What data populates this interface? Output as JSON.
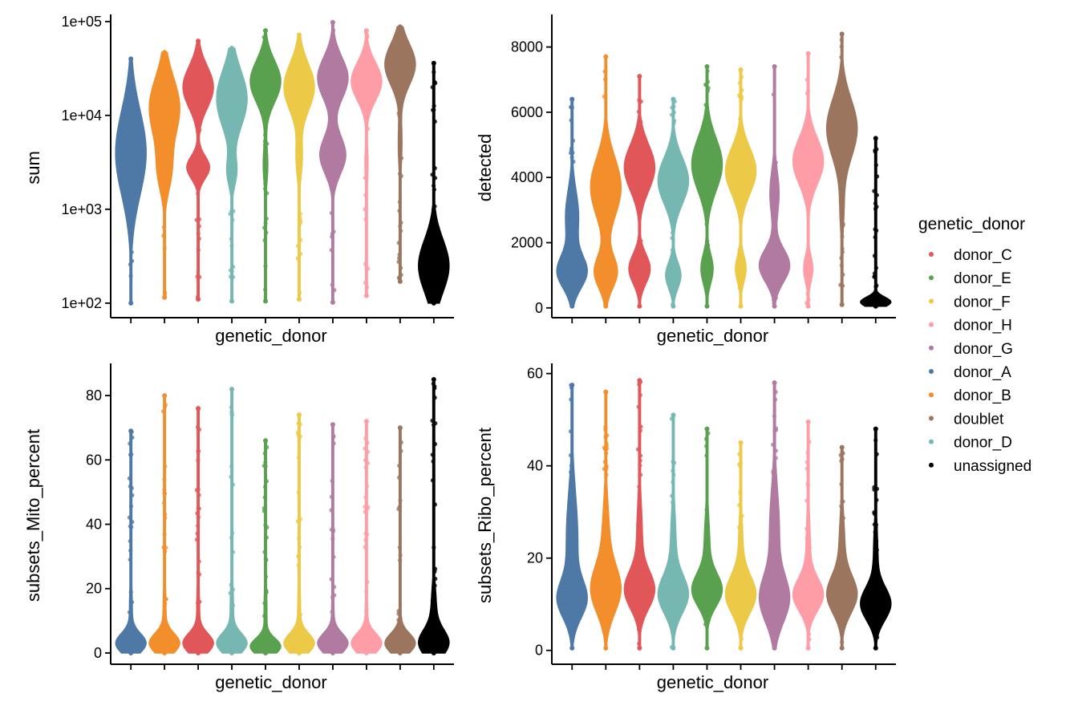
{
  "legend": {
    "title": "genetic_donor",
    "items": [
      {
        "label": "donor_C",
        "color": "#E15759"
      },
      {
        "label": "donor_E",
        "color": "#59A14F"
      },
      {
        "label": "donor_F",
        "color": "#EDC948"
      },
      {
        "label": "donor_H",
        "color": "#FF9DA7"
      },
      {
        "label": "donor_G",
        "color": "#B07AA1"
      },
      {
        "label": "donor_A",
        "color": "#4E79A7"
      },
      {
        "label": "donor_B",
        "color": "#F28E2B"
      },
      {
        "label": "doublet",
        "color": "#9C755F"
      },
      {
        "label": "donor_D",
        "color": "#76B7B2"
      },
      {
        "label": "unassigned",
        "color": "#000000"
      }
    ]
  },
  "chart_data": [
    {
      "type": "violin",
      "xlabel": "genetic_donor",
      "ylabel": "sum",
      "yscale": "log10",
      "ylim": [
        70,
        110000
      ],
      "yticks": [
        100,
        1000,
        10000,
        100000
      ],
      "ytick_labels": [
        "1e+02",
        "1e+03",
        "1e+04",
        "1e+05"
      ],
      "categories": [
        "donor_A",
        "donor_B",
        "donor_C",
        "donor_D",
        "donor_E",
        "donor_F",
        "donor_G",
        "donor_H",
        "doublet",
        "unassigned"
      ],
      "series": [
        {
          "category": "donor_A",
          "min": 100,
          "max": 40000,
          "modes": [
            {
              "center": 4000,
              "spread": 0.45,
              "weight": 1.0
            }
          ]
        },
        {
          "category": "donor_B",
          "min": 115,
          "max": 47000,
          "modes": [
            {
              "center": 12000,
              "spread": 0.32,
              "weight": 1.0
            },
            {
              "center": 2500,
              "spread": 0.22,
              "weight": 0.4
            }
          ]
        },
        {
          "category": "donor_C",
          "min": 110,
          "max": 62000,
          "modes": [
            {
              "center": 20000,
              "spread": 0.22,
              "weight": 1.0
            },
            {
              "center": 2800,
              "spread": 0.12,
              "weight": 0.75
            }
          ]
        },
        {
          "category": "donor_D",
          "min": 105,
          "max": 52000,
          "modes": [
            {
              "center": 15000,
              "spread": 0.3,
              "weight": 1.0
            },
            {
              "center": 2500,
              "spread": 0.15,
              "weight": 0.3
            }
          ]
        },
        {
          "category": "donor_E",
          "min": 105,
          "max": 80000,
          "modes": [
            {
              "center": 23000,
              "spread": 0.22,
              "weight": 1.0
            },
            {
              "center": 3000,
              "spread": 0.2,
              "weight": 0.15
            }
          ]
        },
        {
          "category": "donor_F",
          "min": 110,
          "max": 72000,
          "modes": [
            {
              "center": 20000,
              "spread": 0.25,
              "weight": 1.0
            },
            {
              "center": 3500,
              "spread": 0.2,
              "weight": 0.2
            }
          ]
        },
        {
          "category": "donor_G",
          "min": 102,
          "max": 98000,
          "modes": [
            {
              "center": 25000,
              "spread": 0.22,
              "weight": 1.0
            },
            {
              "center": 3800,
              "spread": 0.2,
              "weight": 0.85
            }
          ]
        },
        {
          "category": "donor_H",
          "min": 120,
          "max": 80000,
          "modes": [
            {
              "center": 23000,
              "spread": 0.2,
              "weight": 1.0
            },
            {
              "center": 3000,
              "spread": 0.2,
              "weight": 0.1
            }
          ]
        },
        {
          "category": "doublet",
          "min": 170,
          "max": 88000,
          "modes": [
            {
              "center": 35000,
              "spread": 0.22,
              "weight": 1.0
            },
            {
              "center": 5000,
              "spread": 0.25,
              "weight": 0.12
            }
          ]
        },
        {
          "category": "unassigned",
          "min": 100,
          "max": 36000,
          "modes": [
            {
              "center": 250,
              "spread": 0.28,
              "weight": 1.0
            }
          ]
        }
      ]
    },
    {
      "type": "violin",
      "xlabel": "genetic_donor",
      "ylabel": "detected",
      "yscale": "linear",
      "ylim": [
        -300,
        8900
      ],
      "yticks": [
        0,
        2000,
        4000,
        6000,
        8000
      ],
      "ytick_labels": [
        "0",
        "2000",
        "4000",
        "6000",
        "8000"
      ],
      "categories": [
        "donor_A",
        "donor_B",
        "donor_C",
        "donor_D",
        "donor_E",
        "donor_F",
        "donor_G",
        "donor_H",
        "doublet",
        "unassigned"
      ],
      "series": [
        {
          "category": "donor_A",
          "min": 50,
          "max": 6400,
          "modes": [
            {
              "center": 1100,
              "spread": 500,
              "weight": 1.0
            },
            {
              "center": 2800,
              "spread": 800,
              "weight": 0.45
            }
          ]
        },
        {
          "category": "donor_B",
          "min": 50,
          "max": 7700,
          "modes": [
            {
              "center": 3700,
              "spread": 900,
              "weight": 1.0
            },
            {
              "center": 1100,
              "spread": 500,
              "weight": 0.75
            }
          ]
        },
        {
          "category": "donor_C",
          "min": 50,
          "max": 7100,
          "modes": [
            {
              "center": 4300,
              "spread": 700,
              "weight": 1.0
            },
            {
              "center": 1200,
              "spread": 450,
              "weight": 0.7
            }
          ]
        },
        {
          "category": "donor_D",
          "min": 50,
          "max": 6400,
          "modes": [
            {
              "center": 3900,
              "spread": 700,
              "weight": 1.0
            },
            {
              "center": 1000,
              "spread": 400,
              "weight": 0.5
            }
          ]
        },
        {
          "category": "donor_E",
          "min": 50,
          "max": 7400,
          "modes": [
            {
              "center": 4400,
              "spread": 800,
              "weight": 1.0
            },
            {
              "center": 1200,
              "spread": 450,
              "weight": 0.4
            }
          ]
        },
        {
          "category": "donor_F",
          "min": 50,
          "max": 7300,
          "modes": [
            {
              "center": 4200,
              "spread": 700,
              "weight": 1.0
            },
            {
              "center": 1200,
              "spread": 400,
              "weight": 0.35
            }
          ]
        },
        {
          "category": "donor_G",
          "min": 50,
          "max": 7400,
          "modes": [
            {
              "center": 1300,
              "spread": 500,
              "weight": 1.0
            },
            {
              "center": 3500,
              "spread": 700,
              "weight": 0.3
            }
          ]
        },
        {
          "category": "donor_H",
          "min": 50,
          "max": 7800,
          "modes": [
            {
              "center": 4500,
              "spread": 700,
              "weight": 1.0
            },
            {
              "center": 1200,
              "spread": 400,
              "weight": 0.3
            }
          ]
        },
        {
          "category": "doublet",
          "min": 100,
          "max": 8400,
          "modes": [
            {
              "center": 5500,
              "spread": 900,
              "weight": 1.0
            },
            {
              "center": 3000,
              "spread": 700,
              "weight": 0.12
            }
          ]
        },
        {
          "category": "unassigned",
          "min": 50,
          "max": 5200,
          "modes": [
            {
              "center": 180,
              "spread": 150,
              "weight": 1.0
            }
          ]
        }
      ]
    },
    {
      "type": "violin",
      "xlabel": "genetic_donor",
      "ylabel": "subsets_Mito_percent",
      "yscale": "linear",
      "ylim": [
        -3.5,
        89
      ],
      "yticks": [
        0,
        20,
        40,
        60,
        80
      ],
      "ytick_labels": [
        "0",
        "20",
        "40",
        "60",
        "80"
      ],
      "categories": [
        "donor_A",
        "donor_B",
        "donor_C",
        "donor_D",
        "donor_E",
        "donor_F",
        "donor_G",
        "donor_H",
        "doublet",
        "unassigned"
      ],
      "series": [
        {
          "category": "donor_A",
          "min": 0,
          "max": 69,
          "modes": [
            {
              "center": 3,
              "spread": 3,
              "weight": 1.0
            },
            {
              "center": 12,
              "spread": 10,
              "weight": 0.1
            }
          ]
        },
        {
          "category": "donor_B",
          "min": 0,
          "max": 80,
          "modes": [
            {
              "center": 3,
              "spread": 3,
              "weight": 1.0
            },
            {
              "center": 12,
              "spread": 10,
              "weight": 0.1
            }
          ]
        },
        {
          "category": "donor_C",
          "min": 0,
          "max": 76,
          "modes": [
            {
              "center": 3,
              "spread": 3,
              "weight": 1.0
            },
            {
              "center": 12,
              "spread": 10,
              "weight": 0.1
            }
          ]
        },
        {
          "category": "donor_D",
          "min": 0,
          "max": 82,
          "modes": [
            {
              "center": 3,
              "spread": 3,
              "weight": 1.0
            },
            {
              "center": 12,
              "spread": 10,
              "weight": 0.12
            }
          ]
        },
        {
          "category": "donor_E",
          "min": 0,
          "max": 66,
          "modes": [
            {
              "center": 2,
              "spread": 2.5,
              "weight": 1.0
            },
            {
              "center": 12,
              "spread": 10,
              "weight": 0.1
            }
          ]
        },
        {
          "category": "donor_F",
          "min": 0,
          "max": 74,
          "modes": [
            {
              "center": 3,
              "spread": 3,
              "weight": 1.0
            },
            {
              "center": 12,
              "spread": 10,
              "weight": 0.1
            }
          ]
        },
        {
          "category": "donor_G",
          "min": 0,
          "max": 71,
          "modes": [
            {
              "center": 3,
              "spread": 3,
              "weight": 1.0
            },
            {
              "center": 12,
              "spread": 10,
              "weight": 0.08
            }
          ]
        },
        {
          "category": "donor_H",
          "min": 0,
          "max": 72,
          "modes": [
            {
              "center": 3,
              "spread": 3,
              "weight": 1.0
            },
            {
              "center": 12,
              "spread": 10,
              "weight": 0.08
            }
          ]
        },
        {
          "category": "doublet",
          "min": 0,
          "max": 70,
          "modes": [
            {
              "center": 3,
              "spread": 3,
              "weight": 1.0
            },
            {
              "center": 12,
              "spread": 10,
              "weight": 0.06
            }
          ]
        },
        {
          "category": "unassigned",
          "min": 0,
          "max": 85,
          "modes": [
            {
              "center": 3,
              "spread": 4,
              "weight": 1.0
            },
            {
              "center": 12,
              "spread": 8,
              "weight": 0.2
            }
          ]
        }
      ]
    },
    {
      "type": "violin",
      "xlabel": "genetic_donor",
      "ylabel": "subsets_Ribo_percent",
      "yscale": "linear",
      "ylim": [
        -3,
        61.5
      ],
      "yticks": [
        0,
        20,
        40,
        60
      ],
      "ytick_labels": [
        "0",
        "20",
        "40",
        "60"
      ],
      "categories": [
        "donor_A",
        "donor_B",
        "donor_C",
        "donor_D",
        "donor_E",
        "donor_F",
        "donor_G",
        "donor_H",
        "doublet",
        "unassigned"
      ],
      "series": [
        {
          "category": "donor_A",
          "min": 0.5,
          "max": 57.5,
          "modes": [
            {
              "center": 11,
              "spread": 4,
              "weight": 1.0
            },
            {
              "center": 24,
              "spread": 10,
              "weight": 0.45
            }
          ]
        },
        {
          "category": "donor_B",
          "min": 0.5,
          "max": 56,
          "modes": [
            {
              "center": 13,
              "spread": 5,
              "weight": 1.0
            },
            {
              "center": 24,
              "spread": 8,
              "weight": 0.25
            }
          ]
        },
        {
          "category": "donor_C",
          "min": 0.5,
          "max": 58.5,
          "modes": [
            {
              "center": 13,
              "spread": 4,
              "weight": 1.0
            },
            {
              "center": 24,
              "spread": 8,
              "weight": 0.2
            }
          ]
        },
        {
          "category": "donor_D",
          "min": 0.5,
          "max": 51,
          "modes": [
            {
              "center": 12,
              "spread": 4,
              "weight": 1.0
            },
            {
              "center": 22,
              "spread": 8,
              "weight": 0.2
            }
          ]
        },
        {
          "category": "donor_E",
          "min": 0.5,
          "max": 48,
          "modes": [
            {
              "center": 13,
              "spread": 3.5,
              "weight": 1.0
            },
            {
              "center": 22,
              "spread": 7,
              "weight": 0.2
            }
          ]
        },
        {
          "category": "donor_F",
          "min": 0.5,
          "max": 45,
          "modes": [
            {
              "center": 12,
              "spread": 4,
              "weight": 1.0
            },
            {
              "center": 22,
              "spread": 7,
              "weight": 0.15
            }
          ]
        },
        {
          "category": "donor_G",
          "min": 0.5,
          "max": 58,
          "modes": [
            {
              "center": 11,
              "spread": 5,
              "weight": 1.0
            },
            {
              "center": 26,
              "spread": 9,
              "weight": 0.35
            }
          ]
        },
        {
          "category": "donor_H",
          "min": 0.5,
          "max": 49.5,
          "modes": [
            {
              "center": 12,
              "spread": 3.5,
              "weight": 1.0
            },
            {
              "center": 22,
              "spread": 7,
              "weight": 0.15
            }
          ]
        },
        {
          "category": "doublet",
          "min": 0.5,
          "max": 44,
          "modes": [
            {
              "center": 12,
              "spread": 4,
              "weight": 1.0
            },
            {
              "center": 22,
              "spread": 7,
              "weight": 0.2
            }
          ]
        },
        {
          "category": "unassigned",
          "min": 0.5,
          "max": 48,
          "modes": [
            {
              "center": 10,
              "spread": 3.5,
              "weight": 1.0
            },
            {
              "center": 20,
              "spread": 7,
              "weight": 0.15
            }
          ]
        }
      ]
    }
  ]
}
